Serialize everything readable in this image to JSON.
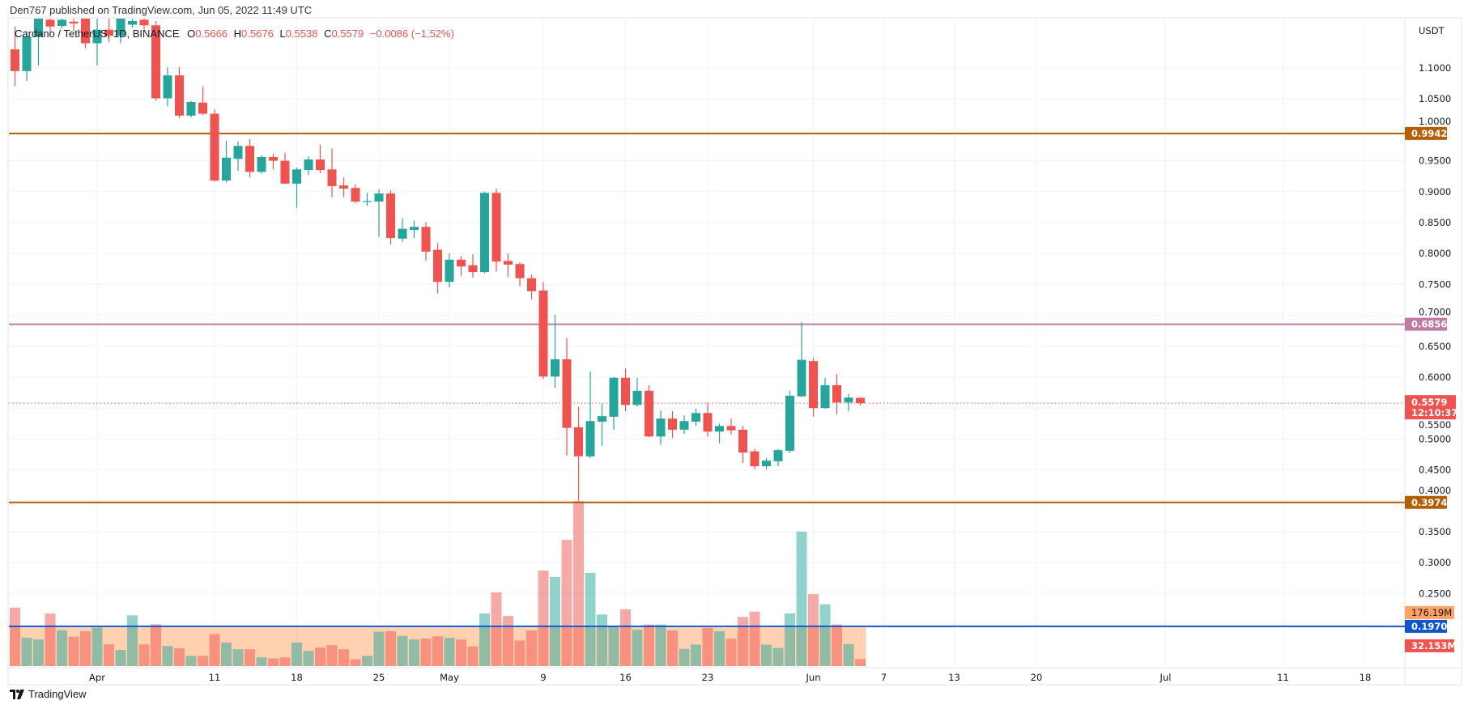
{
  "header": {
    "published": "Den767 published on TradingView.com, Jun 05, 2022 11:49 UTC"
  },
  "legend": {
    "symbol": "Cardano / TetherUS, 1D, BINANCE",
    "o_label": "O",
    "o": "0.5666",
    "h_label": "H",
    "h": "0.5676",
    "l_label": "L",
    "l": "0.5538",
    "c_label": "C",
    "c": "0.5579",
    "change": "−0.0086 (−1.52%)"
  },
  "footer": {
    "brand": "TradingView",
    "logo_icon": "tradingview-logo-icon"
  },
  "chart_data": {
    "type": "candlestick",
    "currency": "USDT",
    "colors": {
      "up": "#26a69a",
      "down": "#ef5350",
      "grid": "#f0f3fa",
      "volume_ma": "#ff9850"
    },
    "ylim": [
      0.177,
      1.177
    ],
    "y_ticks": [
      "1.1000",
      "1.0500",
      "1.0000",
      "0.9500",
      "0.9000",
      "0.8500",
      "0.8000",
      "0.7500",
      "0.7000",
      "0.6500",
      "0.6000",
      "0.5500",
      "0.5000",
      "0.4500",
      "0.4000",
      "0.3500",
      "0.3000",
      "0.2500"
    ],
    "x_ticks": [
      {
        "label": "Apr",
        "date": "2022-04-01"
      },
      {
        "label": "11",
        "date": "2022-04-11"
      },
      {
        "label": "18",
        "date": "2022-04-18"
      },
      {
        "label": "25",
        "date": "2022-04-25"
      },
      {
        "label": "May",
        "date": "2022-05-01"
      },
      {
        "label": "9",
        "date": "2022-05-09"
      },
      {
        "label": "16",
        "date": "2022-05-16"
      },
      {
        "label": "23",
        "date": "2022-05-23"
      },
      {
        "label": "Jun",
        "date": "2022-06-01"
      },
      {
        "label": "7",
        "date": "2022-06-07"
      },
      {
        "label": "13",
        "date": "2022-06-13"
      },
      {
        "label": "20",
        "date": "2022-06-20"
      },
      {
        "label": "Jul",
        "date": "2022-07-01"
      },
      {
        "label": "11",
        "date": "2022-07-11"
      },
      {
        "label": "18",
        "date": "2022-07-18"
      }
    ],
    "columns": [
      "date",
      "open",
      "high",
      "low",
      "close",
      "volume_M"
    ],
    "candles": [
      [
        "2022-03-25",
        1.13,
        1.167,
        1.071,
        1.095,
        267
      ],
      [
        "2022-03-26",
        1.095,
        1.16,
        1.079,
        1.151,
        130
      ],
      [
        "2022-03-27",
        1.151,
        1.2,
        1.104,
        1.19,
        122
      ],
      [
        "2022-03-28",
        1.178,
        1.19,
        1.157,
        1.167,
        240
      ],
      [
        "2022-03-29",
        1.168,
        1.19,
        1.164,
        1.178,
        164
      ],
      [
        "2022-03-30",
        1.175,
        1.19,
        1.16,
        1.172,
        134
      ],
      [
        "2022-03-31",
        1.19,
        1.2,
        1.132,
        1.14,
        160
      ],
      [
        "2022-04-01",
        1.14,
        1.19,
        1.104,
        1.162,
        176
      ],
      [
        "2022-04-02",
        1.162,
        1.184,
        1.142,
        1.152,
        99
      ],
      [
        "2022-04-03",
        1.152,
        1.2,
        1.14,
        1.19,
        74
      ],
      [
        "2022-04-04",
        1.17,
        1.19,
        1.165,
        1.176,
        232
      ],
      [
        "2022-04-05",
        1.178,
        1.19,
        1.162,
        1.169,
        99
      ],
      [
        "2022-04-06",
        1.169,
        1.176,
        1.047,
        1.051,
        191
      ],
      [
        "2022-04-07",
        1.051,
        1.101,
        1.038,
        1.088,
        92
      ],
      [
        "2022-04-08",
        1.088,
        1.101,
        1.019,
        1.023,
        81
      ],
      [
        "2022-04-09",
        1.023,
        1.047,
        1.02,
        1.045,
        47
      ],
      [
        "2022-04-10",
        1.044,
        1.07,
        1.024,
        1.026,
        47
      ],
      [
        "2022-04-11",
        1.026,
        1.033,
        0.916,
        0.918,
        146
      ],
      [
        "2022-04-12",
        0.918,
        0.982,
        0.915,
        0.955,
        108
      ],
      [
        "2022-04-13",
        0.953,
        0.981,
        0.934,
        0.974,
        77
      ],
      [
        "2022-04-14",
        0.974,
        0.985,
        0.923,
        0.932,
        77
      ],
      [
        "2022-04-15",
        0.932,
        0.959,
        0.929,
        0.956,
        40
      ],
      [
        "2022-04-16",
        0.956,
        0.961,
        0.936,
        0.95,
        35
      ],
      [
        "2022-04-17",
        0.95,
        0.963,
        0.912,
        0.913,
        40
      ],
      [
        "2022-04-18",
        0.913,
        0.939,
        0.874,
        0.936,
        108
      ],
      [
        "2022-04-19",
        0.935,
        0.957,
        0.927,
        0.952,
        69
      ],
      [
        "2022-04-20",
        0.952,
        0.976,
        0.93,
        0.935,
        85
      ],
      [
        "2022-04-21",
        0.936,
        0.97,
        0.891,
        0.909,
        96
      ],
      [
        "2022-04-22",
        0.91,
        0.923,
        0.891,
        0.905,
        77
      ],
      [
        "2022-04-23",
        0.906,
        0.912,
        0.881,
        0.884,
        31
      ],
      [
        "2022-04-24",
        0.884,
        0.898,
        0.877,
        0.885,
        47
      ],
      [
        "2022-04-25",
        0.884,
        0.904,
        0.827,
        0.897,
        157
      ],
      [
        "2022-04-26",
        0.897,
        0.902,
        0.815,
        0.825,
        160
      ],
      [
        "2022-04-27",
        0.824,
        0.857,
        0.819,
        0.84,
        138
      ],
      [
        "2022-04-28",
        0.838,
        0.853,
        0.825,
        0.843,
        122
      ],
      [
        "2022-04-29",
        0.843,
        0.85,
        0.788,
        0.803,
        126
      ],
      [
        "2022-04-30",
        0.806,
        0.817,
        0.735,
        0.754,
        136
      ],
      [
        "2022-05-01",
        0.754,
        0.8,
        0.745,
        0.79,
        129
      ],
      [
        "2022-05-02",
        0.79,
        0.796,
        0.764,
        0.779,
        121
      ],
      [
        "2022-05-03",
        0.781,
        0.799,
        0.761,
        0.77,
        90
      ],
      [
        "2022-05-04",
        0.77,
        0.9,
        0.768,
        0.898,
        241
      ],
      [
        "2022-05-05",
        0.898,
        0.905,
        0.771,
        0.787,
        337
      ],
      [
        "2022-05-06",
        0.788,
        0.8,
        0.762,
        0.782,
        229
      ],
      [
        "2022-05-07",
        0.783,
        0.786,
        0.747,
        0.76,
        117
      ],
      [
        "2022-05-08",
        0.76,
        0.766,
        0.726,
        0.739,
        163
      ],
      [
        "2022-05-09",
        0.74,
        0.754,
        0.597,
        0.601,
        437
      ],
      [
        "2022-05-10",
        0.601,
        0.701,
        0.583,
        0.629,
        407
      ],
      [
        "2022-05-11",
        0.629,
        0.663,
        0.473,
        0.518,
        577
      ],
      [
        "2022-05-12",
        0.519,
        0.552,
        0.4,
        0.472,
        754
      ],
      [
        "2022-05-13",
        0.472,
        0.609,
        0.469,
        0.529,
        426
      ],
      [
        "2022-05-14",
        0.528,
        0.557,
        0.489,
        0.537,
        236
      ],
      [
        "2022-05-15",
        0.536,
        0.6,
        0.515,
        0.599,
        183
      ],
      [
        "2022-05-16",
        0.599,
        0.614,
        0.545,
        0.555,
        260
      ],
      [
        "2022-05-17",
        0.555,
        0.599,
        0.552,
        0.578,
        167
      ],
      [
        "2022-05-18",
        0.578,
        0.587,
        0.503,
        0.504,
        190
      ],
      [
        "2022-05-19",
        0.504,
        0.546,
        0.491,
        0.533,
        190
      ],
      [
        "2022-05-20",
        0.533,
        0.545,
        0.502,
        0.515,
        163
      ],
      [
        "2022-05-21",
        0.515,
        0.538,
        0.508,
        0.529,
        79
      ],
      [
        "2022-05-22",
        0.528,
        0.549,
        0.521,
        0.542,
        98
      ],
      [
        "2022-05-23",
        0.542,
        0.559,
        0.504,
        0.512,
        175
      ],
      [
        "2022-05-24",
        0.512,
        0.525,
        0.493,
        0.521,
        159
      ],
      [
        "2022-05-25",
        0.521,
        0.533,
        0.507,
        0.514,
        125
      ],
      [
        "2022-05-26",
        0.515,
        0.521,
        0.461,
        0.478,
        225
      ],
      [
        "2022-05-27",
        0.48,
        0.484,
        0.451,
        0.456,
        249
      ],
      [
        "2022-05-28",
        0.456,
        0.469,
        0.451,
        0.465,
        98
      ],
      [
        "2022-05-29",
        0.464,
        0.484,
        0.456,
        0.482,
        83
      ],
      [
        "2022-05-30",
        0.481,
        0.578,
        0.477,
        0.57,
        241
      ],
      [
        "2022-05-31",
        0.569,
        0.689,
        0.568,
        0.628,
        615
      ],
      [
        "2022-06-01",
        0.626,
        0.631,
        0.536,
        0.55,
        329
      ],
      [
        "2022-06-02",
        0.55,
        0.599,
        0.549,
        0.587,
        283
      ],
      [
        "2022-06-03",
        0.587,
        0.605,
        0.54,
        0.559,
        190
      ],
      [
        "2022-06-04",
        0.559,
        0.573,
        0.545,
        0.567,
        101
      ],
      [
        "2022-06-05",
        0.5666,
        0.5676,
        0.5538,
        0.5579,
        32.153
      ]
    ],
    "horizontal_lines": [
      {
        "value": 0.9942,
        "label": "0.9942",
        "color": "#b45f06"
      },
      {
        "value": 0.6856,
        "label": "0.6856",
        "color": "#c27ba0"
      },
      {
        "value": 0.3974,
        "label": "0.3974",
        "color": "#b45f06"
      },
      {
        "value": 0.197,
        "label": "0.1970",
        "color": "#1155cc"
      }
    ],
    "last_price": {
      "value": 0.5579,
      "label": "0.5579",
      "countdown": "12:10:37",
      "color": "#ef5350"
    },
    "volume_ma": {
      "value": 176.19,
      "label": "176.19M",
      "color": "#ffa264"
    },
    "last_volume": {
      "label": "32.153M",
      "color": "#ef5350"
    }
  }
}
